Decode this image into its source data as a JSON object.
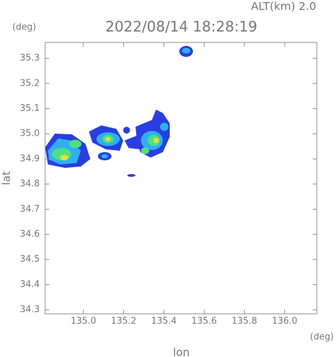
{
  "chart_data": {
    "type": "radar-map",
    "title": "2022/08/14 18:28:19",
    "altitude_label": "ALT(km) 2.0",
    "y_unit": "(deg)",
    "x_unit": "(deg)",
    "xlabel": "lon",
    "ylabel": "lat",
    "xlim": [
      134.81,
      136.16
    ],
    "ylim": [
      34.284,
      35.363
    ],
    "xticks": [
      {
        "value": 135,
        "label": "135.0"
      },
      135.2,
      135.4,
      135.6,
      135.8,
      {
        "value": 136,
        "label": "136.0"
      }
    ],
    "yticks": [
      34.3,
      34.4,
      34.5,
      34.6,
      34.7,
      34.8,
      34.9,
      {
        "value": 35,
        "label": "35.0"
      },
      35.1,
      35.2,
      35.3
    ]
  }
}
